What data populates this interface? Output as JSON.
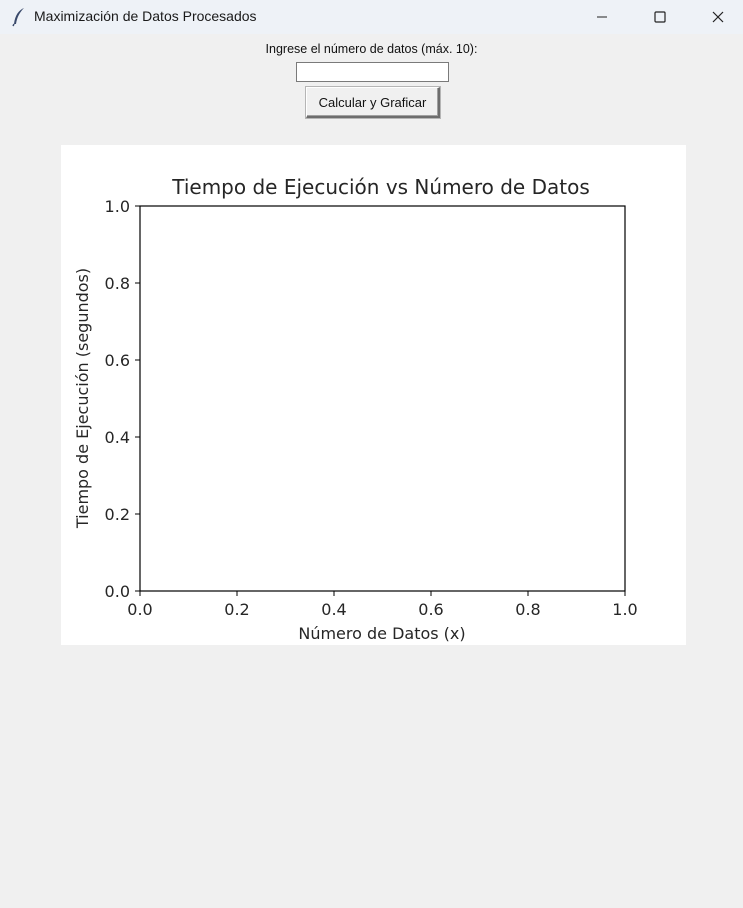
{
  "window": {
    "title": "Maximización de Datos Procesados",
    "app_icon": "feather-icon",
    "controls": [
      "minimize-icon",
      "maximize-icon",
      "close-icon"
    ]
  },
  "form": {
    "prompt_label": "Ingrese el número de datos (máx. 10):",
    "input_value": "",
    "input_placeholder": "",
    "button_label": "Calcular y Graficar"
  },
  "chart_data": {
    "type": "line",
    "title": "Tiempo de Ejecución vs Número de Datos",
    "xlabel": "Número de Datos (x)",
    "ylabel": "Tiempo de Ejecución (segundos)",
    "xlim": [
      0.0,
      1.0
    ],
    "ylim": [
      0.0,
      1.0
    ],
    "xticks": [
      "0.0",
      "0.2",
      "0.4",
      "0.6",
      "0.8",
      "1.0"
    ],
    "yticks": [
      "0.0",
      "0.2",
      "0.4",
      "0.6",
      "0.8",
      "1.0"
    ],
    "series": [],
    "grid": false,
    "legend": "none"
  }
}
